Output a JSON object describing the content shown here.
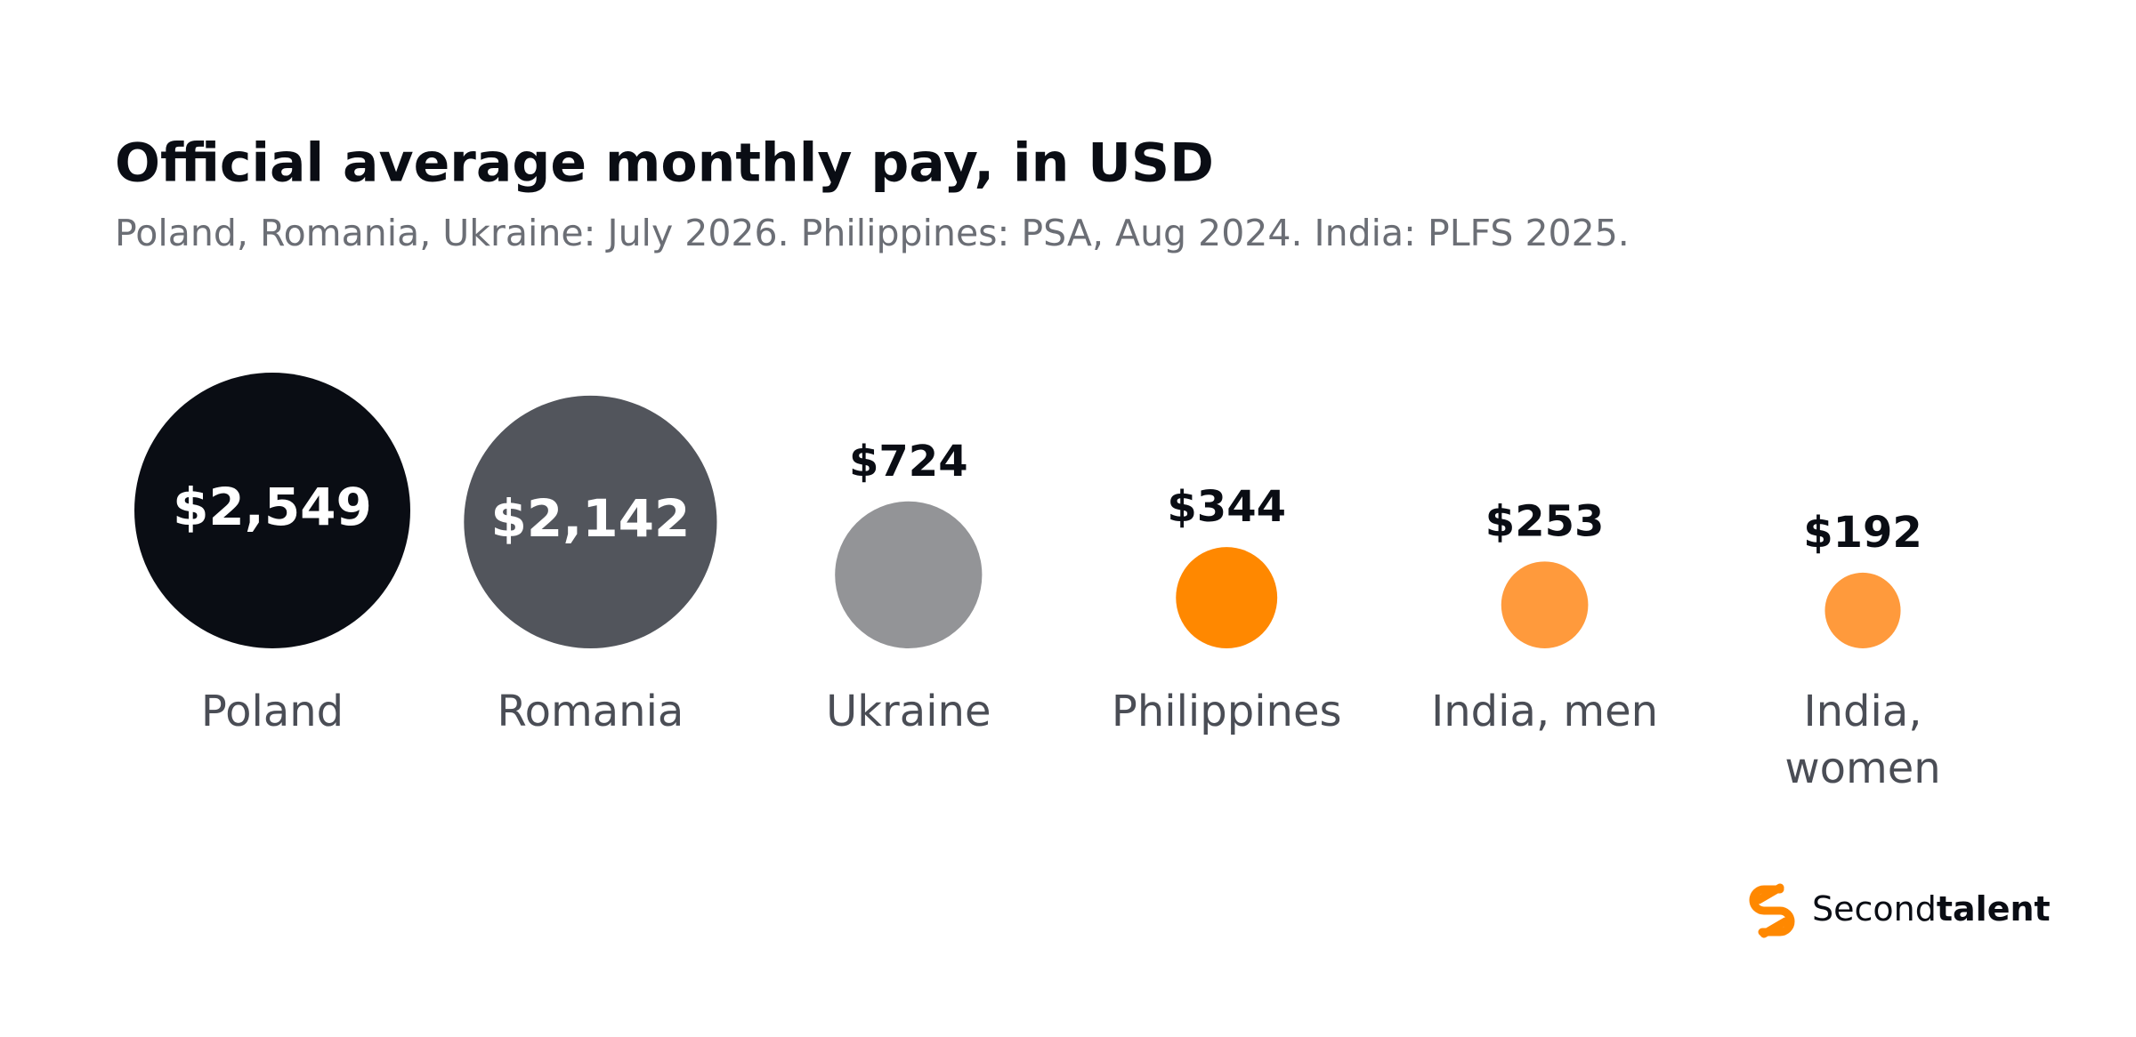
{
  "chart_data": {
    "type": "bubble",
    "title": "Official average monthly pay, in USD",
    "subtitle": "Poland, Romania, Ukraine: July 2026. Philippines: PSA, Aug 2024. India: PLFS 2025.",
    "categories": [
      "Poland",
      "Romania",
      "Ukraine",
      "Philippines",
      "India, men",
      "India, women"
    ],
    "values": [
      2549,
      2142,
      724,
      344,
      253,
      192
    ],
    "value_labels": [
      "$2,549",
      "$2,142",
      "$724",
      "$344",
      "$253",
      "$192"
    ],
    "colors": [
      "#0a0d14",
      "#52555c",
      "#939497",
      "#ff8800",
      "#ff9a3c",
      "#ff9a3c"
    ]
  },
  "logo": {
    "regular": "Second",
    "bold": "talent"
  }
}
